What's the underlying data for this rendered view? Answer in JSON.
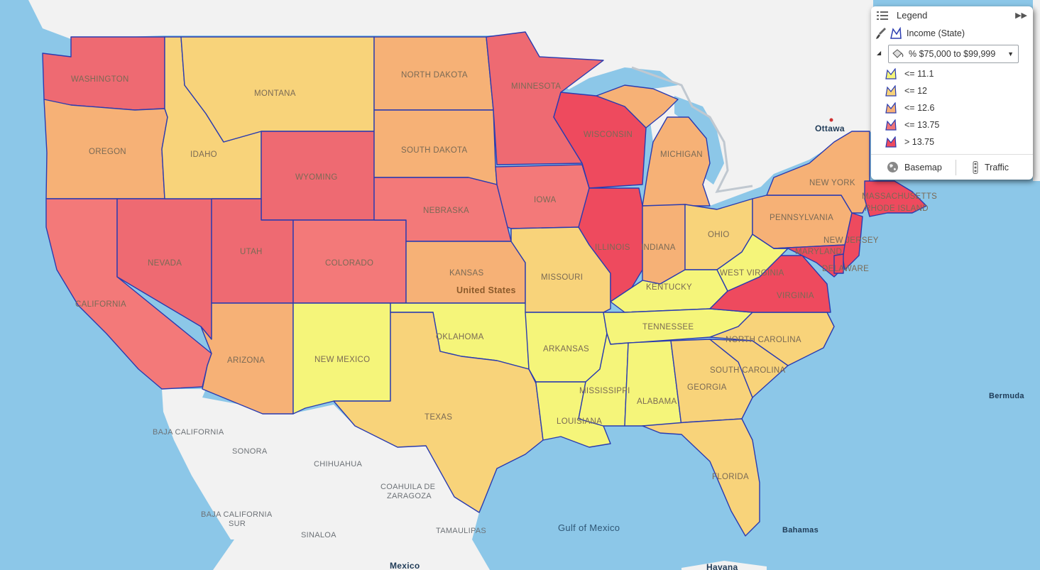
{
  "legend": {
    "title": "Legend",
    "layer_name": "Income (State)",
    "field_selected": "% $75,000 to $99,999",
    "classes": [
      {
        "label": "<= 11.1",
        "color": "#f5f57a"
      },
      {
        "label": "<= 12",
        "color": "#f8d37a"
      },
      {
        "label": "<= 12.6",
        "color": "#f7b077"
      },
      {
        "label": "<= 13.75",
        "color": "#f07478"
      },
      {
        "label": "> 13.75",
        "color": "#ee4a5e"
      }
    ],
    "basemap_label": "Basemap",
    "traffic_label": "Traffic"
  },
  "map_labels": {
    "states": {
      "washington": "WASHINGTON",
      "oregon": "OREGON",
      "california": "CALIFORNIA",
      "idaho": "IDAHO",
      "nevada": "NEVADA",
      "montana": "MONTANA",
      "wyoming": "WYOMING",
      "utah": "UTAH",
      "colorado": "COLORADO",
      "arizona": "ARIZONA",
      "new_mexico": "NEW MEXICO",
      "north_dakota": "NORTH DAKOTA",
      "south_dakota": "SOUTH DAKOTA",
      "nebraska": "NEBRASKA",
      "kansas": "KANSAS",
      "oklahoma": "OKLAHOMA",
      "texas": "TEXAS",
      "minnesota": "MINNESOTA",
      "iowa": "IOWA",
      "missouri": "MISSOURI",
      "arkansas": "ARKANSAS",
      "louisiana": "LOUISIANA",
      "wisconsin": "WISCONSIN",
      "illinois": "ILLINOIS",
      "michigan": "MICHIGAN",
      "indiana": "INDIANA",
      "ohio": "OHIO",
      "kentucky": "KENTUCKY",
      "tennessee": "TENNESSEE",
      "mississippi": "MISSISSIPPI",
      "alabama": "ALABAMA",
      "georgia": "GEORGIA",
      "florida": "FLORIDA",
      "south_carolina": "SOUTH CAROLINA",
      "north_carolina": "NORTH CAROLINA",
      "virginia": "VIRGINIA",
      "west_virginia": "WEST VIRGINIA",
      "pennsylvania": "PENNSYLVANIA",
      "new_york": "NEW YORK",
      "new_jersey": "NEW JERSEY",
      "maryland": "MARYLAND",
      "delaware": "DELAWARE",
      "massachusetts": "MASSACHUSETTS",
      "rhode_island": "RHODE ISLAND"
    },
    "country": "United States",
    "ottawa": "Ottawa",
    "bermuda": "Bermuda",
    "bahamas": "Bahamas",
    "havana": "Havana",
    "gulf": "Gulf of Mexico",
    "mexico": "Mexico",
    "mx_regions": {
      "baja_california": "BAJA CALIFORNIA",
      "sonora": "SONORA",
      "chihuahua": "CHIHUAHUA",
      "coahuila_1": "COAHUILA DE",
      "coahuila_2": "ZARAGOZA",
      "bcs_1": "BAJA CALIFORNIA",
      "bcs_2": "SUR",
      "sinaloa": "SINALOA",
      "tamaulipas": "TAMAULIPAS"
    }
  }
}
